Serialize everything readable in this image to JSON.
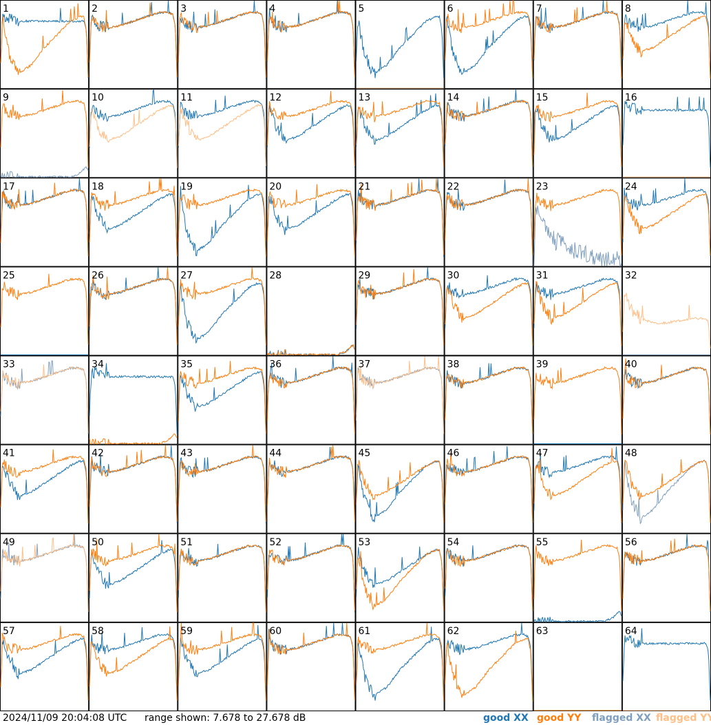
{
  "chart_data": {
    "type": "line",
    "footer": {
      "timestamp": "2024/11/09 20:04:08 UTC",
      "range_text": "range shown: 7.678 to 27.678 dB"
    },
    "y_range_db": [
      7.678,
      27.678
    ],
    "x_range": [
      0,
      1
    ],
    "grid_rows": 8,
    "grid_cols": 8,
    "legend": [
      {
        "label": "good XX",
        "color": "#1f77b4"
      },
      {
        "label": "good YY",
        "color": "#ff7f0e"
      },
      {
        "label": "flagged XX",
        "color": "#7f9fbf"
      },
      {
        "label": "flagged YY",
        "color": "#ffbf87"
      }
    ],
    "colors": {
      "good_xx": "#1f77b4",
      "good_yy": "#ff7f0e",
      "flagged_xx": "#7f9fbf",
      "flagged_yy": "#ffbf87"
    },
    "x_sample_positions": [
      0.0,
      0.02,
      0.05,
      0.1,
      0.2,
      0.35,
      0.5,
      0.65,
      0.8,
      0.9,
      0.95,
      0.98,
      1.0
    ],
    "shapes": {
      "typ": [
        14,
        24,
        23,
        22,
        21.5,
        22,
        23,
        24,
        25,
        25,
        24.5,
        22,
        10
      ],
      "dip": [
        14,
        24,
        22,
        19,
        16,
        17,
        19,
        21,
        23,
        24,
        24,
        21,
        10
      ],
      "deep": [
        14,
        24,
        20,
        15,
        11,
        13,
        17,
        20,
        23,
        24,
        24,
        21,
        10
      ],
      "flat": [
        14,
        24,
        24,
        23.5,
        23,
        23,
        23,
        23,
        23,
        23,
        23,
        21,
        10
      ],
      "noise": [
        8,
        21,
        20,
        18,
        14,
        12,
        11,
        10,
        9.5,
        9,
        9,
        8.5,
        8
      ],
      "low": [
        7.7,
        7.7,
        7.7,
        7.7,
        7.7,
        7.7,
        7.7,
        7.7,
        7.7,
        8.5,
        9.5,
        10,
        9
      ],
      "zero": [
        7.7,
        7.7,
        7.7,
        7.7,
        7.7,
        7.7,
        7.7,
        7.7,
        7.7,
        7.7,
        7.7,
        7.7,
        7.7
      ],
      "mid": [
        12,
        22,
        20,
        18,
        16,
        15,
        15,
        15.5,
        16,
        16,
        16,
        15,
        9
      ]
    },
    "antennas": [
      {
        "id": 1,
        "xx": "flat",
        "yy": "deep",
        "xx_flag": false,
        "yy_flag": false
      },
      {
        "id": 2,
        "xx": "typ",
        "yy": "typ",
        "xx_flag": false,
        "yy_flag": false
      },
      {
        "id": 3,
        "xx": "typ",
        "yy": "typ",
        "xx_flag": false,
        "yy_flag": false
      },
      {
        "id": 4,
        "xx": "typ",
        "yy": "typ",
        "xx_flag": false,
        "yy_flag": false
      },
      {
        "id": 5,
        "xx": "deep",
        "yy": "zero",
        "xx_flag": false,
        "yy_flag": true
      },
      {
        "id": 6,
        "xx": "deep",
        "yy": "typ",
        "xx_flag": false,
        "yy_flag": false
      },
      {
        "id": 7,
        "xx": "typ",
        "yy": "typ",
        "xx_flag": false,
        "yy_flag": false
      },
      {
        "id": 8,
        "xx": "typ",
        "yy": "dip",
        "xx_flag": false,
        "yy_flag": false
      },
      {
        "id": 9,
        "xx": "low",
        "yy": "typ",
        "xx_flag": true,
        "yy_flag": false
      },
      {
        "id": 10,
        "xx": "typ",
        "yy": "dip",
        "xx_flag": false,
        "yy_flag": true
      },
      {
        "id": 11,
        "xx": "typ",
        "yy": "dip",
        "xx_flag": false,
        "yy_flag": true
      },
      {
        "id": 12,
        "xx": "dip",
        "yy": "typ",
        "xx_flag": false,
        "yy_flag": false
      },
      {
        "id": 13,
        "xx": "dip",
        "yy": "typ",
        "xx_flag": false,
        "yy_flag": false
      },
      {
        "id": 14,
        "xx": "typ",
        "yy": "typ",
        "xx_flag": false,
        "yy_flag": false
      },
      {
        "id": 15,
        "xx": "dip",
        "yy": "typ",
        "xx_flag": false,
        "yy_flag": false
      },
      {
        "id": 16,
        "xx": "flat",
        "yy": "zero",
        "xx_flag": false,
        "yy_flag": true
      },
      {
        "id": 17,
        "xx": "typ",
        "yy": "typ",
        "xx_flag": false,
        "yy_flag": false
      },
      {
        "id": 18,
        "xx": "dip",
        "yy": "typ",
        "xx_flag": false,
        "yy_flag": false
      },
      {
        "id": 19,
        "xx": "deep",
        "yy": "typ",
        "xx_flag": false,
        "yy_flag": false
      },
      {
        "id": 20,
        "xx": "dip",
        "yy": "typ",
        "xx_flag": false,
        "yy_flag": false
      },
      {
        "id": 21,
        "xx": "typ",
        "yy": "typ",
        "xx_flag": false,
        "yy_flag": false
      },
      {
        "id": 22,
        "xx": "typ",
        "yy": "typ",
        "xx_flag": false,
        "yy_flag": false
      },
      {
        "id": 23,
        "xx": "noise",
        "yy": "typ",
        "xx_flag": true,
        "yy_flag": false
      },
      {
        "id": 24,
        "xx": "typ",
        "yy": "dip",
        "xx_flag": false,
        "yy_flag": false
      },
      {
        "id": 25,
        "xx": "zero",
        "yy": "typ",
        "xx_flag": false,
        "yy_flag": false
      },
      {
        "id": 26,
        "xx": "typ",
        "yy": "typ",
        "xx_flag": false,
        "yy_flag": false
      },
      {
        "id": 27,
        "xx": "deep",
        "yy": "typ",
        "xx_flag": false,
        "yy_flag": false
      },
      {
        "id": 28,
        "xx": "low",
        "yy": "low",
        "xx_flag": false,
        "yy_flag": false
      },
      {
        "id": 29,
        "xx": "typ",
        "yy": "typ",
        "xx_flag": false,
        "yy_flag": false
      },
      {
        "id": 30,
        "xx": "typ",
        "yy": "dip",
        "xx_flag": false,
        "yy_flag": false
      },
      {
        "id": 31,
        "xx": "typ",
        "yy": "dip",
        "xx_flag": false,
        "yy_flag": false
      },
      {
        "id": 32,
        "xx": "zero",
        "yy": "mid",
        "xx_flag": true,
        "yy_flag": true
      },
      {
        "id": 33,
        "xx": "typ",
        "yy": "typ",
        "xx_flag": true,
        "yy_flag": true
      },
      {
        "id": 34,
        "xx": "flat",
        "yy": "low",
        "xx_flag": false,
        "yy_flag": false
      },
      {
        "id": 35,
        "xx": "dip",
        "yy": "typ",
        "xx_flag": false,
        "yy_flag": false
      },
      {
        "id": 36,
        "xx": "typ",
        "yy": "typ",
        "xx_flag": false,
        "yy_flag": false
      },
      {
        "id": 37,
        "xx": "typ",
        "yy": "typ",
        "xx_flag": true,
        "yy_flag": true
      },
      {
        "id": 38,
        "xx": "typ",
        "yy": "typ",
        "xx_flag": false,
        "yy_flag": false
      },
      {
        "id": 39,
        "xx": "zero",
        "yy": "typ",
        "xx_flag": false,
        "yy_flag": false
      },
      {
        "id": 40,
        "xx": "typ",
        "yy": "typ",
        "xx_flag": false,
        "yy_flag": false
      },
      {
        "id": 41,
        "xx": "dip",
        "yy": "typ",
        "xx_flag": false,
        "yy_flag": false
      },
      {
        "id": 42,
        "xx": "typ",
        "yy": "typ",
        "xx_flag": false,
        "yy_flag": false
      },
      {
        "id": 43,
        "xx": "typ",
        "yy": "typ",
        "xx_flag": false,
        "yy_flag": false
      },
      {
        "id": 44,
        "xx": "typ",
        "yy": "typ",
        "xx_flag": false,
        "yy_flag": false
      },
      {
        "id": 45,
        "xx": "deep",
        "yy": "dip",
        "xx_flag": false,
        "yy_flag": false
      },
      {
        "id": 46,
        "xx": "typ",
        "yy": "typ",
        "xx_flag": false,
        "yy_flag": false
      },
      {
        "id": 47,
        "xx": "typ",
        "yy": "dip",
        "xx_flag": false,
        "yy_flag": false
      },
      {
        "id": 48,
        "xx": "deep",
        "yy": "dip",
        "xx_flag": true,
        "yy_flag": false
      },
      {
        "id": 49,
        "xx": "typ",
        "yy": "typ",
        "xx_flag": true,
        "yy_flag": true
      },
      {
        "id": 50,
        "xx": "dip",
        "yy": "typ",
        "xx_flag": false,
        "yy_flag": false
      },
      {
        "id": 51,
        "xx": "typ",
        "yy": "typ",
        "xx_flag": false,
        "yy_flag": false
      },
      {
        "id": 52,
        "xx": "typ",
        "yy": "typ",
        "xx_flag": false,
        "yy_flag": false
      },
      {
        "id": 53,
        "xx": "dip",
        "yy": "deep",
        "xx_flag": false,
        "yy_flag": false
      },
      {
        "id": 54,
        "xx": "typ",
        "yy": "typ",
        "xx_flag": false,
        "yy_flag": false
      },
      {
        "id": 55,
        "xx": "low",
        "yy": "typ",
        "xx_flag": false,
        "yy_flag": false
      },
      {
        "id": 56,
        "xx": "typ",
        "yy": "typ",
        "xx_flag": false,
        "yy_flag": false
      },
      {
        "id": 57,
        "xx": "dip",
        "yy": "typ",
        "xx_flag": false,
        "yy_flag": false
      },
      {
        "id": 58,
        "xx": "typ",
        "yy": "dip",
        "xx_flag": false,
        "yy_flag": false
      },
      {
        "id": 59,
        "xx": "dip",
        "yy": "typ",
        "xx_flag": false,
        "yy_flag": false
      },
      {
        "id": 60,
        "xx": "typ",
        "yy": "typ",
        "xx_flag": false,
        "yy_flag": false
      },
      {
        "id": 61,
        "xx": "deep",
        "yy": "typ",
        "xx_flag": false,
        "yy_flag": false
      },
      {
        "id": 62,
        "xx": "typ",
        "yy": "deep",
        "xx_flag": false,
        "yy_flag": false
      },
      {
        "id": 63,
        "xx": "zero",
        "yy": "zero",
        "xx_flag": false,
        "yy_flag": false
      },
      {
        "id": 64,
        "xx": "flat",
        "yy": "zero",
        "xx_flag": false,
        "yy_flag": true
      }
    ]
  }
}
